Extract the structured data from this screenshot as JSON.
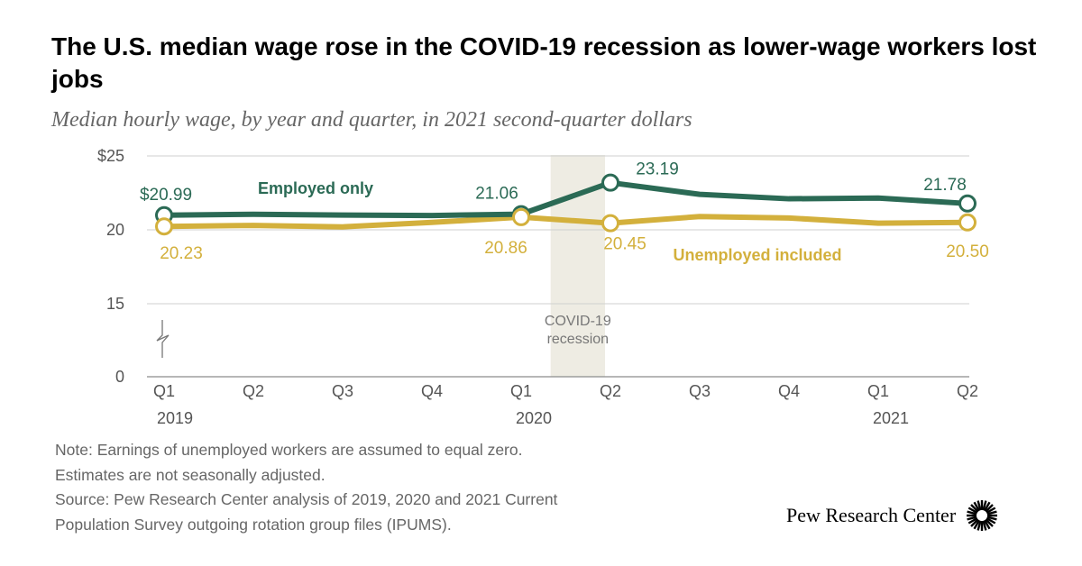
{
  "header": {
    "title": "The U.S. median wage rose in the COVID-19 recession as lower-wage workers lost jobs",
    "subtitle": "Median hourly wage, by year and quarter, in 2021 second-quarter dollars"
  },
  "chart_data": {
    "type": "line",
    "categories": [
      "Q1",
      "Q2",
      "Q3",
      "Q4",
      "Q1",
      "Q2",
      "Q3",
      "Q4",
      "Q1",
      "Q2"
    ],
    "year_labels": [
      {
        "label": "2019",
        "index": 0
      },
      {
        "label": "2020",
        "index": 4
      },
      {
        "label": "2021",
        "index": 8
      }
    ],
    "series": [
      {
        "name": "Employed only",
        "color": "#2b6a55",
        "values": [
          20.99,
          21.05,
          21.0,
          20.97,
          21.06,
          23.19,
          22.4,
          22.1,
          22.15,
          21.78
        ],
        "labels": [
          {
            "index": 0,
            "text": "$20.99"
          },
          {
            "index": 4,
            "text": "21.06"
          },
          {
            "index": 5,
            "text": "23.19"
          },
          {
            "index": 9,
            "text": "21.78"
          }
        ]
      },
      {
        "name": "Unemployed included",
        "color": "#d3b03c",
        "values": [
          20.23,
          20.3,
          20.2,
          20.5,
          20.86,
          20.45,
          20.9,
          20.8,
          20.45,
          20.5
        ],
        "labels": [
          {
            "index": 0,
            "text": "20.23"
          },
          {
            "index": 4,
            "text": "20.86"
          },
          {
            "index": 5,
            "text": "20.45"
          },
          {
            "index": 9,
            "text": "20.50"
          }
        ]
      }
    ],
    "y_ticks": [
      {
        "value": 25,
        "label": "$25"
      },
      {
        "value": 20,
        "label": "20"
      },
      {
        "value": 15,
        "label": "15"
      },
      {
        "value": 0,
        "label": "0"
      }
    ],
    "axis_break": true,
    "shaded_region": {
      "label_lines": [
        "COVID-19",
        "recession"
      ],
      "from_index": 4.33,
      "to_index": 5.0,
      "color": "#eeece3"
    },
    "grid": true
  },
  "notes": [
    "Note: Earnings of unemployed workers are assumed to equal zero.",
    "Estimates are not seasonally adjusted.",
    "Source: Pew Research Center analysis of 2019, 2020 and 2021 Current",
    "Population Survey outgoing rotation group files (IPUMS)."
  ],
  "branding": {
    "text": "Pew Research Center",
    "logo_icon": "pew-sunburst-icon"
  }
}
